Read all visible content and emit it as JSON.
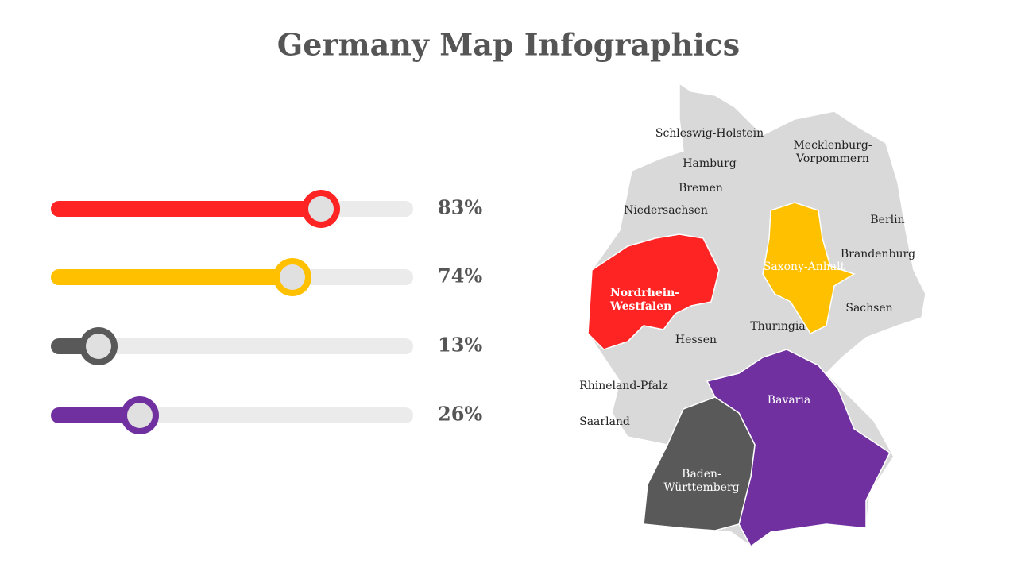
{
  "header": {
    "title": "Germany Map Infographics"
  },
  "sliders": [
    {
      "value": 83,
      "label": "83%",
      "color": "#ff2424"
    },
    {
      "value": 74,
      "label": "74%",
      "color": "#ffc000"
    },
    {
      "value": 13,
      "label": "13%",
      "color": "#595959"
    },
    {
      "value": 26,
      "label": "26%",
      "color": "#7030a0"
    }
  ],
  "map": {
    "regions": [
      {
        "lines": [
          "Schleswig-Holstein"
        ]
      },
      {
        "lines": [
          "Mecklenburg-",
          "Vorpommern"
        ]
      },
      {
        "lines": [
          "Hamburg"
        ]
      },
      {
        "lines": [
          "Bremen"
        ]
      },
      {
        "lines": [
          "Niedersachsen"
        ]
      },
      {
        "lines": [
          "Berlin"
        ]
      },
      {
        "lines": [
          "Brandenburg"
        ]
      },
      {
        "lines": [
          "Saxony-Anhalt"
        ]
      },
      {
        "lines": [
          "Nordrhein-",
          "Westfalen"
        ]
      },
      {
        "lines": [
          "Sachsen"
        ]
      },
      {
        "lines": [
          "Thuringia"
        ]
      },
      {
        "lines": [
          "Hessen"
        ]
      },
      {
        "lines": [
          "Rhineland-Pfalz"
        ]
      },
      {
        "lines": [
          "Saarland"
        ]
      },
      {
        "lines": [
          "Bavaria"
        ]
      },
      {
        "lines": [
          "Baden-",
          "Württemberg"
        ]
      }
    ]
  }
}
